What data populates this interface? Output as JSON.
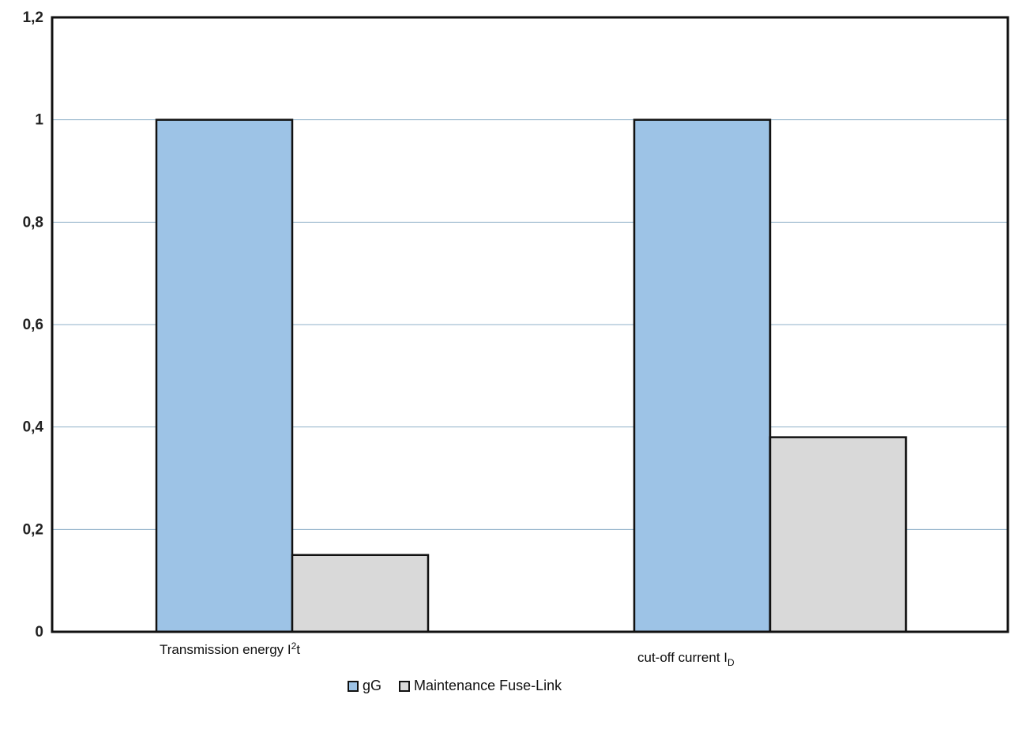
{
  "chart_data": {
    "type": "bar",
    "categories": [
      {
        "main": "Transmission energy I",
        "sup": "2",
        "tail": "t",
        "sub": ""
      },
      {
        "main": "cut-off current I",
        "sup": "",
        "tail": "",
        "sub": "D"
      }
    ],
    "series": [
      {
        "name": "gG",
        "values": [
          1.0,
          1.0
        ],
        "color": "#9dc3e6"
      },
      {
        "name": "Maintenance Fuse-Link",
        "values": [
          0.15,
          0.38
        ],
        "color": "#d9d9d9"
      }
    ],
    "ylim": [
      0,
      1.2
    ],
    "yticks": [
      {
        "value": 0,
        "label": "0"
      },
      {
        "value": 0.2,
        "label": "0,2"
      },
      {
        "value": 0.4,
        "label": "0,4"
      },
      {
        "value": 0.6,
        "label": "0,6"
      },
      {
        "value": 0.8,
        "label": "0,8"
      },
      {
        "value": 1,
        "label": "1"
      },
      {
        "value": 1.2,
        "label": "1,2"
      }
    ],
    "grid": true,
    "grid_color": "#8fb0c8",
    "legend_position": "bottom",
    "xlabel": "",
    "ylabel": "",
    "title": ""
  }
}
